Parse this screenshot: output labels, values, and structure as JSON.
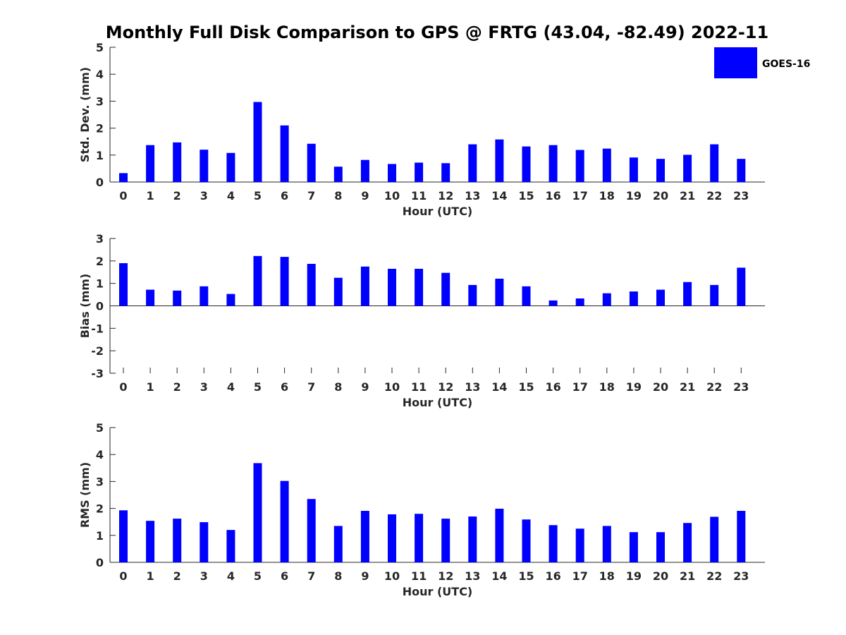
{
  "figure": {
    "title": "Monthly Full Disk Comparison to GPS @ FRTG (43.04, -82.49) 2022-11",
    "legend_label": "GOES-16",
    "bar_color": "#0000ff",
    "legend_position": "top-right"
  },
  "chart_data": [
    {
      "type": "bar",
      "xlabel": "Hour (UTC)",
      "ylabel": "Std. Dev. (mm)",
      "ylim": [
        0,
        5
      ],
      "yticks": [
        0,
        1,
        2,
        3,
        4,
        5
      ],
      "categories": [
        "0",
        "1",
        "2",
        "3",
        "4",
        "5",
        "6",
        "7",
        "8",
        "9",
        "10",
        "11",
        "12",
        "13",
        "14",
        "15",
        "16",
        "17",
        "18",
        "19",
        "20",
        "21",
        "22",
        "23"
      ],
      "series": [
        {
          "name": "GOES-16",
          "values": [
            0.33,
            1.37,
            1.47,
            1.2,
            1.08,
            2.97,
            2.1,
            1.42,
            0.57,
            0.82,
            0.67,
            0.72,
            0.7,
            1.4,
            1.58,
            1.32,
            1.37,
            1.19,
            1.24,
            0.91,
            0.86,
            1.01,
            1.4,
            0.86
          ]
        }
      ]
    },
    {
      "type": "bar",
      "xlabel": "Hour (UTC)",
      "ylabel": "Bias (mm)",
      "ylim": [
        -3,
        3
      ],
      "yticks": [
        -3,
        -2,
        -1,
        0,
        1,
        2,
        3
      ],
      "categories": [
        "0",
        "1",
        "2",
        "3",
        "4",
        "5",
        "6",
        "7",
        "8",
        "9",
        "10",
        "11",
        "12",
        "13",
        "14",
        "15",
        "16",
        "17",
        "18",
        "19",
        "20",
        "21",
        "22",
        "23"
      ],
      "series": [
        {
          "name": "GOES-16",
          "values": [
            1.9,
            0.72,
            0.68,
            0.87,
            0.53,
            2.22,
            2.18,
            1.87,
            1.25,
            1.75,
            1.65,
            1.65,
            1.47,
            0.93,
            1.21,
            0.87,
            0.24,
            0.33,
            0.56,
            0.64,
            0.72,
            1.06,
            0.93,
            1.7
          ]
        }
      ]
    },
    {
      "type": "bar",
      "xlabel": "Hour (UTC)",
      "ylabel": "RMS (mm)",
      "ylim": [
        0,
        5
      ],
      "yticks": [
        0,
        1,
        2,
        3,
        4,
        5
      ],
      "categories": [
        "0",
        "1",
        "2",
        "3",
        "4",
        "5",
        "6",
        "7",
        "8",
        "9",
        "10",
        "11",
        "12",
        "13",
        "14",
        "15",
        "16",
        "17",
        "18",
        "19",
        "20",
        "21",
        "22",
        "23"
      ],
      "series": [
        {
          "name": "GOES-16",
          "values": [
            1.93,
            1.54,
            1.62,
            1.49,
            1.2,
            3.68,
            3.02,
            2.35,
            1.35,
            1.91,
            1.78,
            1.8,
            1.62,
            1.7,
            1.99,
            1.59,
            1.38,
            1.25,
            1.35,
            1.12,
            1.12,
            1.46,
            1.69,
            1.91
          ]
        }
      ]
    }
  ]
}
